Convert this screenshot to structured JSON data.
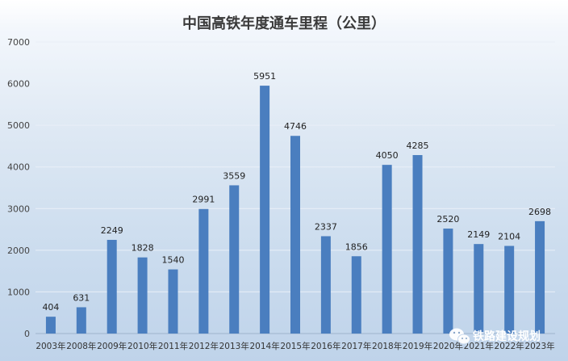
{
  "chart_data": {
    "type": "bar",
    "title": "中国高铁年度通车里程（公里）",
    "xlabel": "",
    "ylabel": "",
    "categories": [
      "2003年",
      "2008年",
      "2009年",
      "2010年",
      "2011年",
      "2012年",
      "2013年",
      "2014年",
      "2015年",
      "2016年",
      "2017年",
      "2018年",
      "2019年",
      "2020年",
      "2021年",
      "2022年",
      "2023年"
    ],
    "values": [
      404,
      631,
      2249,
      1828,
      1540,
      2991,
      3559,
      5951,
      4746,
      2337,
      1856,
      4050,
      4285,
      2520,
      2149,
      2104,
      2698
    ],
    "ylim": [
      0,
      7000
    ],
    "yticks": [
      0,
      1000,
      2000,
      3000,
      4000,
      5000,
      6000,
      7000
    ],
    "grid": true,
    "bar_color": "#4a7ebf",
    "data_labels": true
  },
  "watermark": {
    "text": "铁路建设规划",
    "icon": "wechat-icon"
  }
}
